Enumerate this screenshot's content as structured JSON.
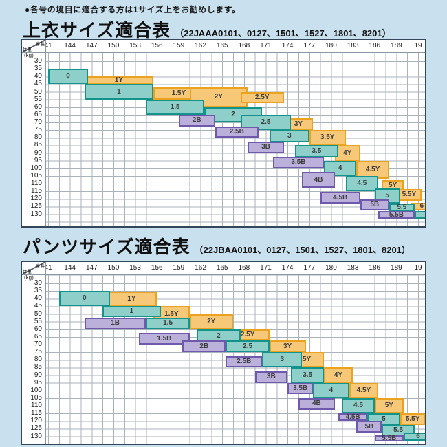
{
  "note": "●各号の境目に適合する方は1サイズ上をお勧めします。",
  "colors": {
    "page_bg": "#c9e0ef",
    "regular_fill": "#8ed0c9",
    "regular_border": "#12948c",
    "slim_fill": "#f6c878",
    "slim_border": "#eaa21f",
    "wide_fill": "#bab0da",
    "wide_border": "#6e59ad",
    "grid_line": "#aab2ba",
    "box_border": "#34465a"
  },
  "chart_data": [
    {
      "type": "heatmap",
      "title": "上衣サイズ適合表",
      "code": "（22JAAA0101、0127、1501、1527、1801、8201）",
      "xlabel": "身長",
      "ylabel": "体重",
      "y_unit": "(kg)",
      "x_range": [
        141,
        193.5
      ],
      "y_range": [
        30,
        130
      ],
      "grid": true,
      "x_ticks": [
        "41",
        "144",
        "147",
        "150",
        "153",
        "156",
        "159",
        "162",
        "165",
        "168",
        "171",
        "174",
        "177",
        "180",
        "183",
        "186",
        "189",
        "19"
      ],
      "y_ticks": [
        "30",
        "35",
        "40",
        "45",
        "50",
        "55",
        "60",
        "65",
        "70",
        "75",
        "80",
        "85",
        "90",
        "95",
        "100",
        "105",
        "110",
        "115",
        "120",
        "125",
        "130"
      ],
      "series": [
        {
          "css": "slim",
          "blocks": [
            {
              "label": "1Y",
              "h": [
                146,
                155.5
              ],
              "w": [
                40,
                45
              ]
            },
            {
              "label": "1.5Y",
              "h": [
                155.5,
                162.5
              ],
              "w": [
                47,
                55
              ]
            },
            {
              "label": "2Y",
              "h": [
                160.5,
                168.5
              ],
              "w": [
                47,
                60
              ]
            },
            {
              "label": "2.5Y",
              "h": [
                167.5,
                173.5
              ],
              "w": [
                50,
                57.5
              ]
            },
            {
              "label": "3Y",
              "h": [
                173.5,
                177.5
              ],
              "w": [
                67.5,
                75
              ]
            },
            {
              "label": "3.5Y",
              "h": [
                177,
                182
              ],
              "w": [
                75,
                85
              ]
            },
            {
              "label": "4Y",
              "h": [
                180.5,
                184
              ],
              "w": [
                85,
                95
              ]
            },
            {
              "label": "4.5Y",
              "h": [
                183.5,
                188
              ],
              "w": [
                95,
                107
              ]
            },
            {
              "label": "5Y",
              "h": [
                187,
                190
              ],
              "w": [
                107.5,
                115
              ]
            },
            {
              "label": "5.5Y",
              "h": [
                189,
                192.5
              ],
              "w": [
                113.5,
                121
              ]
            },
            {
              "label": "6",
              "h": [
                191,
                194
              ],
              "w": [
                122.5,
                127.5
              ]
            }
          ]
        },
        {
          "css": "regular",
          "blocks": [
            {
              "label": "0",
              "h": [
                141,
                146.5
              ],
              "w": [
                35,
                45
              ]
            },
            {
              "label": "1",
              "h": [
                146,
                155.5
              ],
              "w": [
                45,
                55
              ]
            },
            {
              "label": "1.5",
              "h": [
                154.5,
                162.5
              ],
              "w": [
                55,
                65
              ]
            },
            {
              "label": "2",
              "h": [
                162.5,
                170.5
              ],
              "w": [
                60,
                70
              ]
            },
            {
              "label": "2.5",
              "h": [
                167.5,
                174.5
              ],
              "w": [
                65,
                75
              ]
            },
            {
              "label": "3",
              "h": [
                171.5,
                177
              ],
              "w": [
                75,
                83
              ]
            },
            {
              "label": "3.5",
              "h": [
                175,
                181
              ],
              "w": [
                85,
                93
              ]
            },
            {
              "label": "4",
              "h": [
                179,
                183.5
              ],
              "w": [
                95,
                105
              ]
            },
            {
              "label": "4.5",
              "h": [
                182,
                186.5
              ],
              "w": [
                105,
                115
              ]
            },
            {
              "label": "5",
              "h": [
                186,
                189.5
              ],
              "w": [
                113,
                123
              ]
            },
            {
              "label": "5.5",
              "h": [
                188,
                191.5
              ],
              "w": [
                123,
                128
              ]
            },
            {
              "label": "",
              "h": [
                191.5,
                194
              ],
              "w": [
                128,
                133
              ]
            }
          ]
        },
        {
          "css": "wide",
          "blocks": [
            {
              "label": "2B",
              "h": [
                159,
                164
              ],
              "w": [
                65,
                72.5
              ]
            },
            {
              "label": "2.5B",
              "h": [
                164,
                170
              ],
              "w": [
                72.5,
                80
              ]
            },
            {
              "label": "3B",
              "h": [
                168.5,
                173.5
              ],
              "w": [
                82.5,
                90
              ]
            },
            {
              "label": "3.5B",
              "h": [
                172,
                179
              ],
              "w": [
                92.5,
                100
              ]
            },
            {
              "label": "4B",
              "h": [
                176,
                180.5
              ],
              "w": [
                102.5,
                112.5
              ]
            },
            {
              "label": "4.5B",
              "h": [
                178.5,
                184
              ],
              "w": [
                115.5,
                123
              ]
            },
            {
              "label": "5B",
              "h": [
                184,
                188
              ],
              "w": [
                120.5,
                127.5
              ]
            },
            {
              "label": "5.5B",
              "h": [
                186.5,
                191.5
              ],
              "w": [
                128,
                133
              ]
            }
          ]
        }
      ]
    },
    {
      "type": "heatmap",
      "title": "パンツサイズ適合表",
      "code": "（22JBAA0101、0127、1501、1527、1801、8201）",
      "xlabel": "身長",
      "ylabel": "体重",
      "y_unit": "(kg)",
      "x_range": [
        141,
        193.5
      ],
      "y_range": [
        30,
        130
      ],
      "grid": true,
      "x_ticks": [
        "41",
        "144",
        "147",
        "150",
        "153",
        "156",
        "159",
        "162",
        "165",
        "168",
        "171",
        "174",
        "177",
        "180",
        "183",
        "186",
        "189",
        "19"
      ],
      "y_ticks": [
        "30",
        "35",
        "40",
        "45",
        "50",
        "55",
        "60",
        "65",
        "70",
        "75",
        "80",
        "85",
        "90",
        "95",
        "100",
        "105",
        "110",
        "115",
        "120",
        "125",
        "130"
      ],
      "series": [
        {
          "css": "slim",
          "blocks": [
            {
              "label": "1Y",
              "h": [
                149,
                156
              ],
              "w": [
                35.5,
                45
              ]
            },
            {
              "label": "1.5Y",
              "h": [
                155.5,
                160.5
              ],
              "w": [
                45,
                55
              ]
            },
            {
              "label": "2Y",
              "h": [
                160.5,
                166.5
              ],
              "w": [
                50,
                60
              ]
            },
            {
              "label": "2.5Y",
              "h": [
                165.5,
                171.5
              ],
              "w": [
                60,
                67.5
              ]
            },
            {
              "label": "3Y",
              "h": [
                171.5,
                176.5
              ],
              "w": [
                67.5,
                75
              ]
            },
            {
              "label": "3.5Y",
              "h": [
                173.5,
                179
              ],
              "w": [
                75,
                85
              ]
            },
            {
              "label": "4Y",
              "h": [
                179,
                183
              ],
              "w": [
                85,
                95
              ]
            },
            {
              "label": "4.5Y",
              "h": [
                182.5,
                186.5
              ],
              "w": [
                95,
                105
              ]
            },
            {
              "label": "5Y",
              "h": [
                186,
                190
              ],
              "w": [
                105,
                115
              ]
            },
            {
              "label": "5.5Y",
              "h": [
                189.5,
                193
              ],
              "w": [
                115,
                122.5
              ]
            }
          ]
        },
        {
          "css": "regular",
          "blocks": [
            {
              "label": "0",
              "h": [
                142.5,
                149.5
              ],
              "w": [
                35,
                45
              ]
            },
            {
              "label": "1",
              "h": [
                148.5,
                156.5
              ],
              "w": [
                45,
                52
              ]
            },
            {
              "label": "1.5",
              "h": [
                154.5,
                160.5
              ],
              "w": [
                52.5,
                60
              ]
            },
            {
              "label": "2",
              "h": [
                161.5,
                167.5
              ],
              "w": [
                60,
                69
              ]
            },
            {
              "label": "2.5",
              "h": [
                165.5,
                171.5
              ],
              "w": [
                67.5,
                75
              ]
            },
            {
              "label": "3",
              "h": [
                170.5,
                176
              ],
              "w": [
                75,
                85
              ]
            },
            {
              "label": "3.5",
              "h": [
                174.5,
                179
              ],
              "w": [
                85,
                95
              ]
            },
            {
              "label": "4",
              "h": [
                177.5,
                182.5
              ],
              "w": [
                95,
                105
              ]
            },
            {
              "label": "4.5",
              "h": [
                181.5,
                186
              ],
              "w": [
                105,
                115
              ]
            },
            {
              "label": "5",
              "h": [
                185,
                189.5
              ],
              "w": [
                115,
                123
              ]
            },
            {
              "label": "5.5",
              "h": [
                187,
                191.5
              ],
              "w": [
                122.5,
                130
              ]
            },
            {
              "label": "6",
              "h": [
                190,
                194
              ],
              "w": [
                127.5,
                133
              ]
            }
          ]
        },
        {
          "css": "wide",
          "blocks": [
            {
              "label": "1B",
              "h": [
                146,
                154.5
              ],
              "w": [
                52.5,
                60
              ]
            },
            {
              "label": "1.5B",
              "h": [
                153.5,
                160.5
              ],
              "w": [
                62.5,
                70
              ]
            },
            {
              "label": "2B",
              "h": [
                159.5,
                165.5
              ],
              "w": [
                67.5,
                75
              ]
            },
            {
              "label": "2.5B",
              "h": [
                165.5,
                170.5
              ],
              "w": [
                77.5,
                85
              ]
            },
            {
              "label": "3B",
              "h": [
                169.5,
                174
              ],
              "w": [
                87.5,
                95
              ]
            },
            {
              "label": "3.5B",
              "h": [
                174,
                177.5
              ],
              "w": [
                95,
                102.5
              ]
            },
            {
              "label": "4B",
              "h": [
                175.5,
                180.5
              ],
              "w": [
                105,
                112.5
              ]
            },
            {
              "label": "4.5B",
              "h": [
                181,
                185
              ],
              "w": [
                115,
                120
              ]
            },
            {
              "label": "5B",
              "h": [
                183.5,
                187
              ],
              "w": [
                120,
                127.5
              ]
            },
            {
              "label": "5.5B",
              "h": [
                186,
                190
              ],
              "w": [
                129.5,
                133.5
              ]
            }
          ]
        }
      ]
    }
  ]
}
